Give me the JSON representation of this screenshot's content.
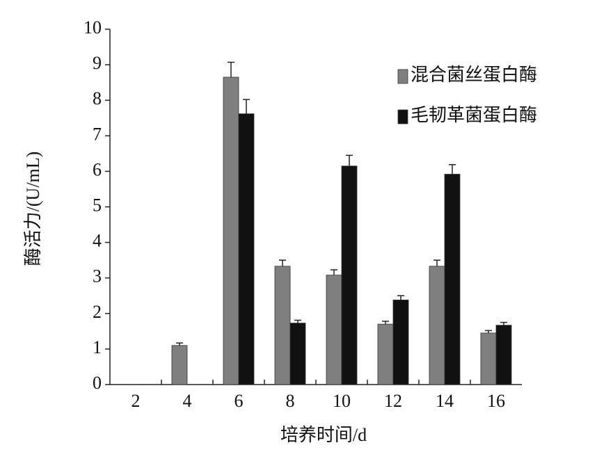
{
  "chart_data": {
    "type": "bar",
    "x_label": "培养时间/d",
    "y_label": "酶活力/(U/mL)",
    "categories": [
      "2",
      "4",
      "6",
      "8",
      "10",
      "12",
      "14",
      "16"
    ],
    "series": [
      {
        "name": "混合菌丝蛋白酶",
        "color": "#7f7f7f",
        "values": [
          null,
          1.1,
          8.65,
          3.33,
          3.08,
          1.7,
          3.33,
          1.45
        ],
        "errors": [
          null,
          0.07,
          0.42,
          0.17,
          0.15,
          0.08,
          0.17,
          0.07
        ]
      },
      {
        "name": "毛韧革菌蛋白酶",
        "color": "#111111",
        "values": [
          null,
          null,
          7.62,
          1.73,
          6.15,
          2.38,
          5.92,
          1.67
        ],
        "errors": [
          null,
          null,
          0.4,
          0.08,
          0.3,
          0.12,
          0.27,
          0.08
        ]
      }
    ],
    "ylim": [
      0,
      10
    ],
    "yticks": [
      0,
      1,
      2,
      3,
      4,
      5,
      6,
      7,
      8,
      9,
      10
    ],
    "grid": false,
    "legend": "upper right"
  }
}
